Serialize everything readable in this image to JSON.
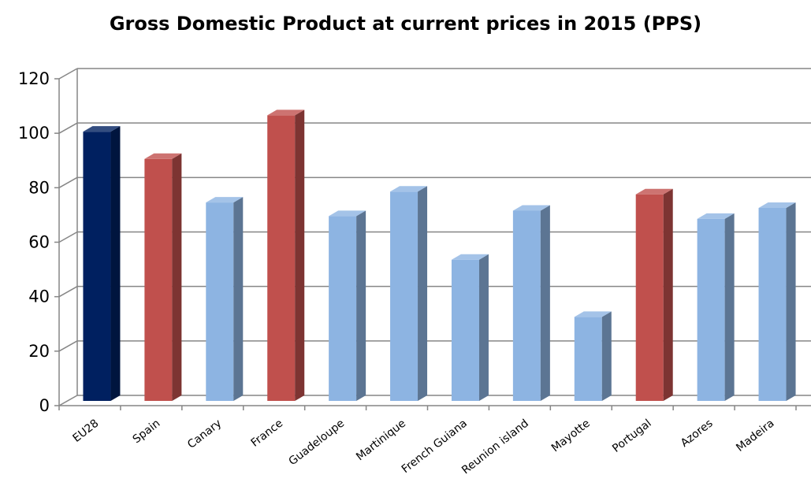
{
  "chart_data": {
    "type": "bar",
    "title": "Gross Domestic Product at current prices in 2015 (PPS)",
    "xlabel": "",
    "ylabel": "",
    "ylim": [
      0,
      120
    ],
    "yticks": [
      0,
      20,
      40,
      60,
      80,
      100,
      120
    ],
    "grid": true,
    "legend": "none",
    "categories": [
      "EU28",
      "Spain",
      "Canary",
      "France",
      "Guadeloupe",
      "Martinique",
      "French Guiana",
      "Reunion island",
      "Mayotte",
      "Portugal",
      "Azores",
      "Madeira"
    ],
    "values": [
      100,
      90,
      74,
      106,
      69,
      78,
      53,
      71,
      32,
      77,
      68,
      72
    ],
    "bar_colors": [
      "#002060",
      "#C0504D",
      "#8DB4E2",
      "#C0504D",
      "#8DB4E2",
      "#8DB4E2",
      "#8DB4E2",
      "#8DB4E2",
      "#8DB4E2",
      "#C0504D",
      "#8DB4E2",
      "#8DB4E2"
    ]
  }
}
